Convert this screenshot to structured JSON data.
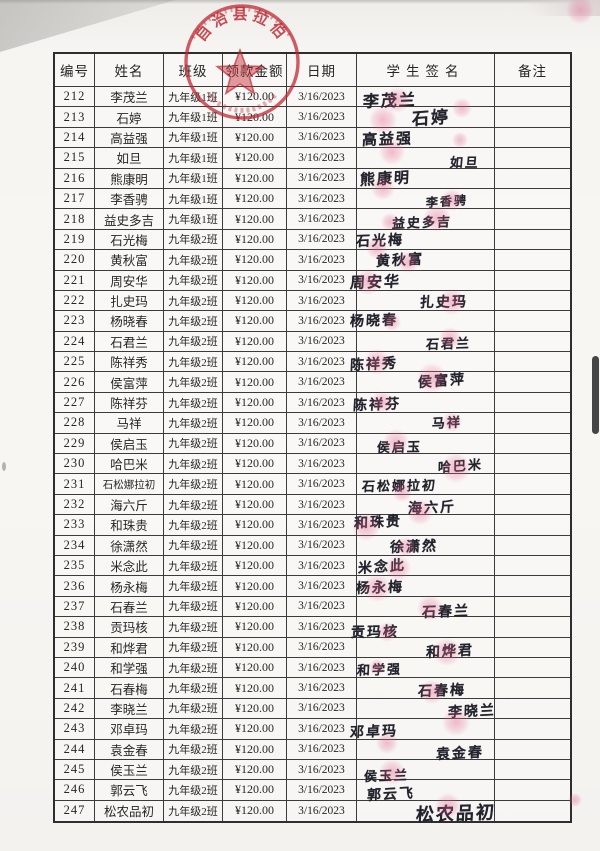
{
  "stamp": {
    "arc_text": "自治县拉伯",
    "color": "#bf2330"
  },
  "table": {
    "headers": [
      "编号",
      "姓名",
      "班级",
      "领款金额",
      "日期",
      "学生签名",
      "备注"
    ],
    "rows": [
      {
        "id": "212",
        "name": "李茂兰",
        "cls": "九年级1班",
        "amount": "¥120.00",
        "date": "3/16/2023",
        "sig": "李茂兰",
        "remark": ""
      },
      {
        "id": "213",
        "name": "石婷",
        "cls": "九年级1班",
        "amount": "¥120.00",
        "date": "3/16/2023",
        "sig": "石婷",
        "remark": ""
      },
      {
        "id": "214",
        "name": "高益强",
        "cls": "九年级1班",
        "amount": "¥120.00",
        "date": "3/16/2023",
        "sig": "高益强",
        "remark": ""
      },
      {
        "id": "215",
        "name": "如旦",
        "cls": "九年级1班",
        "amount": "¥120.00",
        "date": "3/16/2023",
        "sig": "如旦",
        "remark": ""
      },
      {
        "id": "216",
        "name": "熊康明",
        "cls": "九年级1班",
        "amount": "¥120.00",
        "date": "3/16/2023",
        "sig": "熊康明",
        "remark": ""
      },
      {
        "id": "217",
        "name": "李香骋",
        "cls": "九年级1班",
        "amount": "¥120.00",
        "date": "3/16/2023",
        "sig": "李香骋",
        "remark": ""
      },
      {
        "id": "218",
        "name": "益史多吉",
        "cls": "九年级1班",
        "amount": "¥120.00",
        "date": "3/16/2023",
        "sig": "益史多吉",
        "remark": ""
      },
      {
        "id": "219",
        "name": "石光梅",
        "cls": "九年级2班",
        "amount": "¥120.00",
        "date": "3/16/2023",
        "sig": "石光梅",
        "remark": ""
      },
      {
        "id": "220",
        "name": "黄秋富",
        "cls": "九年级2班",
        "amount": "¥120.00",
        "date": "3/16/2023",
        "sig": "黄秋富",
        "remark": ""
      },
      {
        "id": "221",
        "name": "周安华",
        "cls": "九年级2班",
        "amount": "¥120.00",
        "date": "3/16/2023",
        "sig": "周安华",
        "remark": ""
      },
      {
        "id": "222",
        "name": "扎史玛",
        "cls": "九年级2班",
        "amount": "¥120.00",
        "date": "3/16/2023",
        "sig": "扎史玛",
        "remark": ""
      },
      {
        "id": "223",
        "name": "杨晓春",
        "cls": "九年级2班",
        "amount": "¥120.00",
        "date": "3/16/2023",
        "sig": "杨晓春",
        "remark": ""
      },
      {
        "id": "224",
        "name": "石君兰",
        "cls": "九年级2班",
        "amount": "¥120.00",
        "date": "3/16/2023",
        "sig": "石君兰",
        "remark": ""
      },
      {
        "id": "225",
        "name": "陈祥秀",
        "cls": "九年级2班",
        "amount": "¥120.00",
        "date": "3/16/2023",
        "sig": "陈祥秀",
        "remark": ""
      },
      {
        "id": "226",
        "name": "侯富萍",
        "cls": "九年级2班",
        "amount": "¥120.00",
        "date": "3/16/2023",
        "sig": "侯富萍",
        "remark": ""
      },
      {
        "id": "227",
        "name": "陈祥芬",
        "cls": "九年级2班",
        "amount": "¥120.00",
        "date": "3/16/2023",
        "sig": "陈祥芬",
        "remark": ""
      },
      {
        "id": "228",
        "name": "马祥",
        "cls": "九年级2班",
        "amount": "¥120.00",
        "date": "3/16/2023",
        "sig": "马祥",
        "remark": ""
      },
      {
        "id": "229",
        "name": "侯启玉",
        "cls": "九年级2班",
        "amount": "¥120.00",
        "date": "3/16/2023",
        "sig": "侯启玉",
        "remark": ""
      },
      {
        "id": "230",
        "name": "哈巴米",
        "cls": "九年级2班",
        "amount": "¥120.00",
        "date": "3/16/2023",
        "sig": "哈巴米",
        "remark": ""
      },
      {
        "id": "231",
        "name": "石松娜拉初",
        "cls": "九年级2班",
        "amount": "¥120.00",
        "date": "3/16/2023",
        "sig": "石松娜拉初",
        "remark": ""
      },
      {
        "id": "232",
        "name": "海六斤",
        "cls": "九年级2班",
        "amount": "¥120.00",
        "date": "3/16/2023",
        "sig": "海六斤",
        "remark": ""
      },
      {
        "id": "233",
        "name": "和珠贵",
        "cls": "九年级2班",
        "amount": "¥120.00",
        "date": "3/16/2023",
        "sig": "和珠贵",
        "remark": ""
      },
      {
        "id": "234",
        "name": "徐潇然",
        "cls": "九年级2班",
        "amount": "¥120.00",
        "date": "3/16/2023",
        "sig": "徐潇然",
        "remark": ""
      },
      {
        "id": "235",
        "name": "米念此",
        "cls": "九年级2班",
        "amount": "¥120.00",
        "date": "3/16/2023",
        "sig": "米念此",
        "remark": ""
      },
      {
        "id": "236",
        "name": "杨永梅",
        "cls": "九年级2班",
        "amount": "¥120.00",
        "date": "3/16/2023",
        "sig": "杨永梅",
        "remark": ""
      },
      {
        "id": "237",
        "name": "石春兰",
        "cls": "九年级2班",
        "amount": "¥120.00",
        "date": "3/16/2023",
        "sig": "石春兰",
        "remark": ""
      },
      {
        "id": "238",
        "name": "贡玛核",
        "cls": "九年级2班",
        "amount": "¥120.00",
        "date": "3/16/2023",
        "sig": "贡玛核",
        "remark": ""
      },
      {
        "id": "239",
        "name": "和烨君",
        "cls": "九年级2班",
        "amount": "¥120.00",
        "date": "3/16/2023",
        "sig": "和烨君",
        "remark": ""
      },
      {
        "id": "240",
        "name": "和学强",
        "cls": "九年级2班",
        "amount": "¥120.00",
        "date": "3/16/2023",
        "sig": "和学强",
        "remark": ""
      },
      {
        "id": "241",
        "name": "石春梅",
        "cls": "九年级2班",
        "amount": "¥120.00",
        "date": "3/16/2023",
        "sig": "石春梅",
        "remark": ""
      },
      {
        "id": "242",
        "name": "李晓兰",
        "cls": "九年级2班",
        "amount": "¥120.00",
        "date": "3/16/2023",
        "sig": "李晓兰",
        "remark": ""
      },
      {
        "id": "243",
        "name": "邓卓玛",
        "cls": "九年级2班",
        "amount": "¥120.00",
        "date": "3/16/2023",
        "sig": "邓卓玛",
        "remark": ""
      },
      {
        "id": "244",
        "name": "袁金春",
        "cls": "九年级2班",
        "amount": "¥120.00",
        "date": "3/16/2023",
        "sig": "袁金春",
        "remark": ""
      },
      {
        "id": "245",
        "name": "侯玉兰",
        "cls": "九年级2班",
        "amount": "¥120.00",
        "date": "3/16/2023",
        "sig": "侯玉兰",
        "remark": ""
      },
      {
        "id": "246",
        "name": "郭云飞",
        "cls": "九年级2班",
        "amount": "¥120.00",
        "date": "3/16/2023",
        "sig": "郭云飞",
        "remark": ""
      },
      {
        "id": "247",
        "name": "松农品初",
        "cls": "九年级2班",
        "amount": "¥120.00",
        "date": "3/16/2023",
        "sig": "松农品初",
        "remark": ""
      }
    ]
  }
}
